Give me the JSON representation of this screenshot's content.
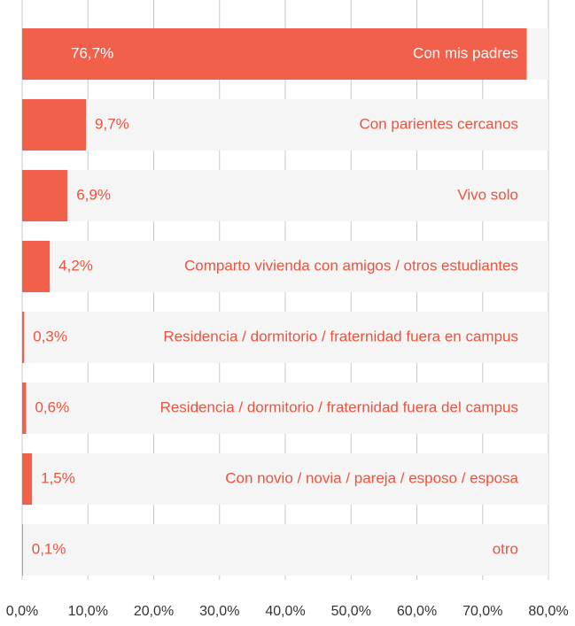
{
  "chart_data": {
    "type": "bar",
    "orientation": "horizontal",
    "categories": [
      "Con mis padres",
      "Con parientes cercanos",
      "Vivo solo",
      "Comparto vivienda con amigos / otros estudiantes",
      "Residencia / dormitorio / fraternidad fuera en campus",
      "Residencia / dormitorio / fraternidad fuera del campus",
      "Con novio / novia / pareja / esposo / esposa",
      "otro"
    ],
    "values": [
      76.7,
      9.7,
      6.9,
      4.2,
      0.3,
      0.6,
      1.5,
      0.1
    ],
    "value_labels": [
      "76,7%",
      "9,7%",
      "6,9%",
      "4,2%",
      "0,3%",
      "0,6%",
      "1,5%",
      "0,1%"
    ],
    "color": "#f0604a",
    "xlim": [
      0,
      80
    ],
    "xticks": [
      {
        "value": 0,
        "label": "0,0%"
      },
      {
        "value": 10,
        "label": "10,0%"
      },
      {
        "value": 20,
        "label": "20,0%"
      },
      {
        "value": 30,
        "label": "30,0%"
      },
      {
        "value": 40,
        "label": "40,0%"
      },
      {
        "value": 50,
        "label": "50,0%"
      },
      {
        "value": 60,
        "label": "60,0%"
      },
      {
        "value": 70,
        "label": "70,0%"
      },
      {
        "value": 80,
        "label": "80,0%"
      }
    ],
    "grid": true
  }
}
